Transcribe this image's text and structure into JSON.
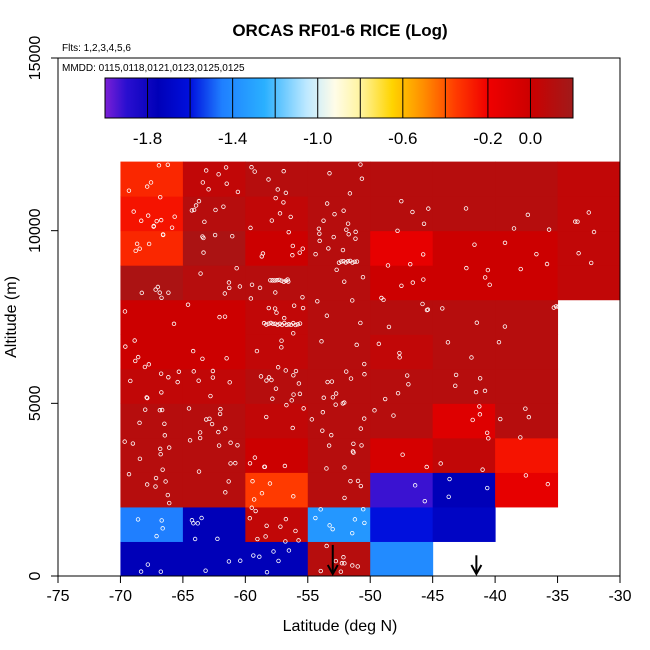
{
  "chart_data": {
    "type": "heatmap",
    "title": "ORCAS RF01-6 RICE (Log)",
    "flights_note": "Flts: 1,2,3,4,5,6",
    "dates_note": "MMDD: 0115,0118,0121,0123,0125,0125",
    "xlabel": "Latitude (deg N)",
    "ylabel": "Altitude (m)",
    "xlim": [
      -75,
      -30
    ],
    "ylim": [
      0,
      15000
    ],
    "x_ticks": [
      -75,
      -70,
      -65,
      -60,
      -55,
      -50,
      -45,
      -40,
      -35,
      -30
    ],
    "x_tick_labels": [
      "-75",
      "-70",
      "-65",
      "-60",
      "-55",
      "-50",
      "-45",
      "-40",
      "-35",
      "-30"
    ],
    "y_ticks": [
      0,
      5000,
      10000,
      15000
    ],
    "y_tick_labels": [
      "0",
      "5000",
      "10000",
      "15000"
    ],
    "colorbar": {
      "range": [
        -2.0,
        0.2
      ],
      "tick_values": [
        -1.8,
        -1.4,
        -1.0,
        -0.6,
        -0.2,
        0.0
      ],
      "tick_labels": [
        "-1.8",
        "-1.4",
        "-1.0",
        "-0.6",
        "-0.2",
        "0.0"
      ],
      "stops": [
        {
          "v": -2.0,
          "c": "#7b1fd6"
        },
        {
          "v": -1.9,
          "c": "#2a0fd0"
        },
        {
          "v": -1.75,
          "c": "#0000b8"
        },
        {
          "v": -1.6,
          "c": "#0010dd"
        },
        {
          "v": -1.45,
          "c": "#1f7fff"
        },
        {
          "v": -1.25,
          "c": "#2ab0ff"
        },
        {
          "v": -1.05,
          "c": "#bfe9ff"
        },
        {
          "v": -0.92,
          "c": "#fffce8"
        },
        {
          "v": -0.8,
          "c": "#fff4a0"
        },
        {
          "v": -0.65,
          "c": "#ffd400"
        },
        {
          "v": -0.5,
          "c": "#ff8c00"
        },
        {
          "v": -0.35,
          "c": "#ff3a00"
        },
        {
          "v": -0.2,
          "c": "#f00000"
        },
        {
          "v": 0.0,
          "c": "#cc0000"
        },
        {
          "v": 0.2,
          "c": "#a01a1a"
        }
      ]
    },
    "cell_size": {
      "lat": 5,
      "alt": 1000
    },
    "cells": [
      {
        "lat": -70,
        "alt": 0,
        "v": -1.75
      },
      {
        "lat": -65,
        "alt": 0,
        "v": -1.75
      },
      {
        "lat": -60,
        "alt": 0,
        "v": -1.75
      },
      {
        "lat": -55,
        "alt": 0,
        "v": 0.1
      },
      {
        "lat": -50,
        "alt": 0,
        "v": -1.4
      },
      {
        "lat": -70,
        "alt": 1000,
        "v": -1.45
      },
      {
        "lat": -65,
        "alt": 1000,
        "v": -1.75
      },
      {
        "lat": -60,
        "alt": 1000,
        "v": 0.05
      },
      {
        "lat": -55,
        "alt": 1000,
        "v": -1.35
      },
      {
        "lat": -50,
        "alt": 1000,
        "v": -1.6
      },
      {
        "lat": -45,
        "alt": 1000,
        "v": -1.7
      },
      {
        "lat": -70,
        "alt": 2000,
        "v": 0.1
      },
      {
        "lat": -65,
        "alt": 2000,
        "v": 0.1
      },
      {
        "lat": -60,
        "alt": 2000,
        "v": -0.35
      },
      {
        "lat": -55,
        "alt": 2000,
        "v": 0.1
      },
      {
        "lat": -50,
        "alt": 2000,
        "v": -1.92
      },
      {
        "lat": -45,
        "alt": 2000,
        "v": -1.75
      },
      {
        "lat": -40,
        "alt": 2000,
        "v": -0.15
      },
      {
        "lat": -70,
        "alt": 3000,
        "v": 0.1
      },
      {
        "lat": -65,
        "alt": 3000,
        "v": 0.1
      },
      {
        "lat": -60,
        "alt": 3000,
        "v": 0.0
      },
      {
        "lat": -55,
        "alt": 3000,
        "v": 0.1
      },
      {
        "lat": -50,
        "alt": 3000,
        "v": -0.05
      },
      {
        "lat": -45,
        "alt": 3000,
        "v": 0.05
      },
      {
        "lat": -40,
        "alt": 3000,
        "v": -0.25
      },
      {
        "lat": -70,
        "alt": 4000,
        "v": 0.1
      },
      {
        "lat": -65,
        "alt": 4000,
        "v": 0.1
      },
      {
        "lat": -60,
        "alt": 4000,
        "v": 0.05
      },
      {
        "lat": -55,
        "alt": 4000,
        "v": 0.1
      },
      {
        "lat": -50,
        "alt": 4000,
        "v": 0.1
      },
      {
        "lat": -45,
        "alt": 4000,
        "v": -0.1
      },
      {
        "lat": -40,
        "alt": 4000,
        "v": 0.1
      },
      {
        "lat": -70,
        "alt": 5000,
        "v": 0.05
      },
      {
        "lat": -65,
        "alt": 5000,
        "v": 0.05
      },
      {
        "lat": -60,
        "alt": 5000,
        "v": 0.1
      },
      {
        "lat": -55,
        "alt": 5000,
        "v": 0.1
      },
      {
        "lat": -50,
        "alt": 5000,
        "v": 0.1
      },
      {
        "lat": -45,
        "alt": 5000,
        "v": 0.1
      },
      {
        "lat": -40,
        "alt": 5000,
        "v": 0.1
      },
      {
        "lat": -70,
        "alt": 6000,
        "v": 0.0
      },
      {
        "lat": -65,
        "alt": 6000,
        "v": 0.0
      },
      {
        "lat": -60,
        "alt": 6000,
        "v": 0.05
      },
      {
        "lat": -55,
        "alt": 6000,
        "v": 0.1
      },
      {
        "lat": -50,
        "alt": 6000,
        "v": 0.05
      },
      {
        "lat": -45,
        "alt": 6000,
        "v": 0.1
      },
      {
        "lat": -40,
        "alt": 6000,
        "v": 0.1
      },
      {
        "lat": -70,
        "alt": 7000,
        "v": 0.0
      },
      {
        "lat": -65,
        "alt": 7000,
        "v": 0.0
      },
      {
        "lat": -60,
        "alt": 7000,
        "v": 0.05
      },
      {
        "lat": -55,
        "alt": 7000,
        "v": 0.1
      },
      {
        "lat": -50,
        "alt": 7000,
        "v": 0.1
      },
      {
        "lat": -45,
        "alt": 7000,
        "v": 0.1
      },
      {
        "lat": -40,
        "alt": 7000,
        "v": 0.1
      },
      {
        "lat": -70,
        "alt": 8000,
        "v": 0.15
      },
      {
        "lat": -65,
        "alt": 8000,
        "v": 0.1
      },
      {
        "lat": -60,
        "alt": 8000,
        "v": 0.1
      },
      {
        "lat": -55,
        "alt": 8000,
        "v": 0.1
      },
      {
        "lat": -50,
        "alt": 8000,
        "v": 0.0
      },
      {
        "lat": -45,
        "alt": 8000,
        "v": 0.0
      },
      {
        "lat": -40,
        "alt": 8000,
        "v": 0.0
      },
      {
        "lat": -35,
        "alt": 8000,
        "v": 0.05
      },
      {
        "lat": -70,
        "alt": 9000,
        "v": -0.3
      },
      {
        "lat": -65,
        "alt": 9000,
        "v": 0.15
      },
      {
        "lat": -60,
        "alt": 9000,
        "v": 0.0
      },
      {
        "lat": -55,
        "alt": 9000,
        "v": 0.1
      },
      {
        "lat": -50,
        "alt": 9000,
        "v": -0.15
      },
      {
        "lat": -45,
        "alt": 9000,
        "v": 0.0
      },
      {
        "lat": -40,
        "alt": 9000,
        "v": 0.0
      },
      {
        "lat": -35,
        "alt": 9000,
        "v": 0.05
      },
      {
        "lat": -70,
        "alt": 10000,
        "v": -0.25
      },
      {
        "lat": -65,
        "alt": 10000,
        "v": 0.1
      },
      {
        "lat": -60,
        "alt": 10000,
        "v": 0.05
      },
      {
        "lat": -55,
        "alt": 10000,
        "v": 0.1
      },
      {
        "lat": -50,
        "alt": 10000,
        "v": 0.1
      },
      {
        "lat": -45,
        "alt": 10000,
        "v": 0.1
      },
      {
        "lat": -40,
        "alt": 10000,
        "v": 0.1
      },
      {
        "lat": -35,
        "alt": 10000,
        "v": 0.05
      },
      {
        "lat": -70,
        "alt": 11000,
        "v": -0.3
      },
      {
        "lat": -65,
        "alt": 11000,
        "v": 0.05
      },
      {
        "lat": -60,
        "alt": 11000,
        "v": 0.1
      },
      {
        "lat": -55,
        "alt": 11000,
        "v": 0.1
      },
      {
        "lat": -50,
        "alt": 11000,
        "v": 0.1
      },
      {
        "lat": -45,
        "alt": 11000,
        "v": 0.1
      },
      {
        "lat": -40,
        "alt": 11000,
        "v": 0.1
      },
      {
        "lat": -35,
        "alt": 11000,
        "v": 0.05
      }
    ],
    "sample_columns": [
      {
        "lat": -70,
        "alt_range": [
          0,
          12000
        ],
        "n": 70
      },
      {
        "lat": -65,
        "alt_range": [
          0,
          12000
        ],
        "n": 65
      },
      {
        "lat": -60,
        "alt_range": [
          0,
          12000
        ],
        "n": 80
      },
      {
        "lat": -55,
        "alt_range": [
          0,
          12000
        ],
        "n": 75
      },
      {
        "lat": -50,
        "alt_range": [
          2000,
          11000
        ],
        "n": 30
      },
      {
        "lat": -45,
        "alt_range": [
          2000,
          11000
        ],
        "n": 25
      },
      {
        "lat": -40,
        "alt_range": [
          2500,
          11500
        ],
        "n": 15
      },
      {
        "lat": -35,
        "alt_range": [
          8500,
          11500
        ],
        "n": 6
      }
    ],
    "sample_legs": [
      {
        "lat_range": [
          -58.5,
          -55.5
        ],
        "alt": 7300
      },
      {
        "lat_range": [
          -52.5,
          -51
        ],
        "alt": 9100
      },
      {
        "lat_range": [
          -35.3,
          -33.5
        ],
        "alt": 7800
      },
      {
        "lat_range": [
          -58,
          -56.5
        ],
        "alt": 8550
      }
    ],
    "arrows": [
      {
        "lat": -53,
        "alt_top": 900
      },
      {
        "lat": -41.5,
        "alt_top": 600
      }
    ]
  }
}
